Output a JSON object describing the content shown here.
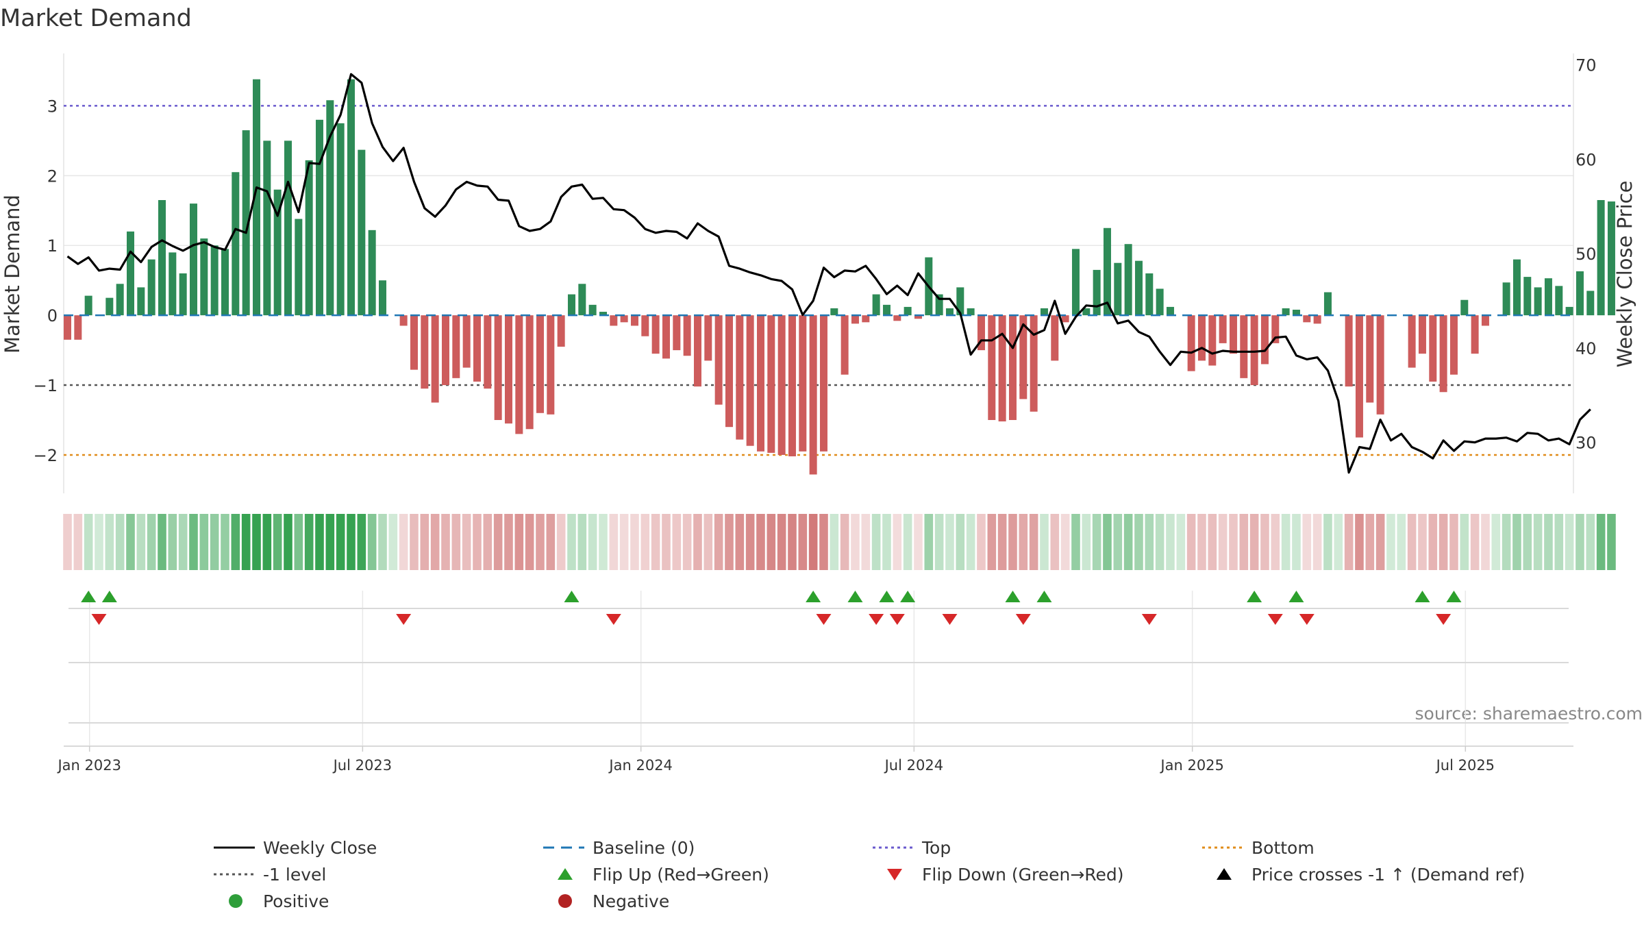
{
  "chart_data": {
    "type": "bar",
    "title": "Market Demand",
    "ylabel_left": "Market Demand",
    "ylabel_right": "Weekly Close Price",
    "ylim_left": [
      -2.55,
      3.75
    ],
    "ylim_right": [
      24.6,
      71.2
    ],
    "left_ticks": [
      3,
      2,
      1,
      0,
      -1,
      -2
    ],
    "left_tick_labels": [
      "3",
      "2",
      "1",
      "0",
      "−1",
      "−2"
    ],
    "right_ticks": [
      70,
      60,
      50,
      40,
      30
    ],
    "right_tick_labels": [
      "70",
      "60",
      "50",
      "40",
      "30"
    ],
    "x_tick_labels": [
      "Jan 2023",
      "Jul 2023",
      "Jan 2024",
      "Jul 2024",
      "Jan 2025",
      "Jul 2025"
    ],
    "x_tick_weeks": [
      2.1,
      28.1,
      54.6,
      80.6,
      107.1,
      133.1
    ],
    "reference_lines": {
      "top": 3.0,
      "minus_one": -1.0,
      "bottom": -2.0,
      "baseline": 0.0
    },
    "weeks": 144,
    "demand": [
      -0.35,
      -0.35,
      0.28,
      0,
      0.25,
      0.45,
      1.2,
      0.4,
      0.8,
      1.65,
      0.9,
      0.6,
      1.6,
      1.1,
      1.0,
      0.95,
      2.05,
      2.65,
      3.38,
      2.5,
      1.8,
      2.5,
      1.38,
      2.22,
      2.8,
      3.08,
      2.75,
      3.38,
      2.37,
      1.22,
      0.5,
      0,
      -0.15,
      -0.78,
      -1.05,
      -1.25,
      -1.0,
      -0.9,
      -0.75,
      -0.95,
      -1.05,
      -1.5,
      -1.55,
      -1.7,
      -1.63,
      -1.4,
      -1.42,
      -0.45,
      0.3,
      0.45,
      0.15,
      0.05,
      -0.15,
      -0.1,
      -0.15,
      -0.3,
      -0.55,
      -0.62,
      -0.5,
      -0.58,
      -1.02,
      -0.65,
      -1.28,
      -1.6,
      -1.78,
      -1.87,
      -1.95,
      -1.97,
      -2.0,
      -2.02,
      -1.95,
      -2.28,
      -1.95,
      0.1,
      -0.85,
      -0.12,
      -0.1,
      0.3,
      0.15,
      -0.08,
      0.12,
      -0.05,
      0.83,
      0.3,
      0.1,
      0.4,
      0.1,
      -0.5,
      -1.5,
      -1.52,
      -1.5,
      -1.2,
      -1.38,
      0.1,
      -0.65,
      -0.1,
      0.95,
      0.1,
      0.65,
      1.25,
      0.75,
      1.02,
      0.78,
      0.6,
      0.38,
      0.12,
      0,
      -0.8,
      -0.65,
      -0.72,
      -0.4,
      -0.55,
      -0.9,
      -1.0,
      -0.7,
      -0.4,
      0.1,
      0.08,
      -0.1,
      -0.12,
      0.33,
      0,
      -1.02,
      -1.75,
      -1.25,
      -1.42,
      0,
      0,
      -0.75,
      -0.55,
      -0.95,
      -1.1,
      -0.85,
      0.22,
      -0.55,
      -0.15,
      0,
      0.47,
      0.8,
      0.55,
      0.4,
      0.53,
      0.42,
      0.12,
      0.63,
      0.35,
      1.65,
      1.63
    ],
    "weekly_close": [
      49.7,
      48.9,
      49.6,
      48.2,
      48.4,
      48.3,
      50.2,
      49.1,
      50.7,
      51.4,
      50.8,
      50.3,
      50.9,
      51.2,
      50.7,
      50.4,
      52.6,
      52.2,
      57.0,
      56.6,
      54.0,
      57.6,
      54.4,
      59.6,
      59.5,
      62.4,
      64.7,
      69.0,
      68.1,
      63.8,
      61.3,
      59.8,
      61.2,
      57.6,
      54.8,
      53.9,
      55.1,
      56.8,
      57.6,
      57.2,
      57.1,
      55.7,
      55.6,
      52.9,
      52.4,
      52.6,
      53.4,
      56.0,
      57.1,
      57.3,
      55.8,
      55.9,
      54.7,
      54.6,
      53.8,
      52.6,
      52.2,
      52.4,
      52.3,
      51.6,
      53.2,
      52.4,
      51.8,
      48.7,
      48.4,
      48.0,
      47.7,
      47.3,
      47.1,
      46.2,
      43.5,
      45.0,
      48.5,
      47.5,
      48.2,
      48.1,
      48.7,
      47.3,
      45.7,
      46.6,
      45.6,
      47.9,
      46.5,
      45.2,
      45.2,
      43.7,
      39.3,
      40.8,
      40.8,
      41.5,
      40.0,
      42.5,
      41.4,
      41.9,
      45.0,
      41.5,
      43.3,
      44.5,
      44.4,
      44.8,
      42.6,
      42.9,
      41.7,
      41.2,
      39.6,
      38.2,
      39.6,
      39.5,
      40.0,
      39.4,
      39.7,
      39.6,
      39.6,
      39.6,
      39.7,
      41.1,
      41.2,
      39.2,
      38.8,
      39.0,
      37.6,
      34.4,
      26.8,
      29.5,
      29.3,
      32.4,
      30.2,
      30.9,
      29.5,
      29.0,
      28.3,
      30.2,
      29.1,
      30.1,
      30.0,
      30.4,
      30.4,
      30.5,
      30.1,
      31.0,
      30.9,
      30.2,
      30.4,
      29.8,
      32.4,
      33.5
    ],
    "flips_up": [
      2,
      4,
      48,
      71,
      75,
      78,
      80,
      90,
      93,
      113,
      117,
      129,
      132
    ],
    "flips_down": [
      3,
      32,
      52,
      72,
      77,
      79,
      84,
      91,
      103,
      115,
      118,
      131
    ],
    "colors": {
      "positive_bar": "#2e8b57",
      "negative_bar": "#cd5c5c",
      "price_line": "#000000",
      "baseline": "#1f77b4",
      "top_line": "#6a5acd",
      "bottom_line": "#e08c1a",
      "minus_one_line": "#555555",
      "flip_up": "#2ca02c",
      "flip_down": "#d62728",
      "heat_positive": "#2e9e4a",
      "heat_negative": "#cd6b6b",
      "grid": "#e8e8e8",
      "axis_text": "#333333",
      "source_text": "#888888"
    },
    "legend": [
      {
        "label": "Weekly Close",
        "marker": "solid-line",
        "color": "#111111"
      },
      {
        "label": "Baseline (0)",
        "marker": "dash-line",
        "color": "#1f77b4"
      },
      {
        "label": "Top",
        "marker": "dot-line",
        "color": "#6a5acd"
      },
      {
        "label": "Bottom",
        "marker": "dot-line",
        "color": "#e08c1a"
      },
      {
        "label": "-1 level",
        "marker": "dot-line",
        "color": "#555555"
      },
      {
        "label": "Flip Up (Red→Green)",
        "marker": "triangle-up",
        "color": "#2ca02c"
      },
      {
        "label": "Flip Down (Green→Red)",
        "marker": "triangle-down",
        "color": "#d62728"
      },
      {
        "label": "Price crosses -1 ↑ (Demand ref)",
        "marker": "triangle-up",
        "color": "#000000"
      },
      {
        "label": "Positive",
        "marker": "circle",
        "color": "#2e9e3a"
      },
      {
        "label": "Negative",
        "marker": "circle",
        "color": "#b22222"
      }
    ],
    "source": "source: sharemaestro.com"
  }
}
